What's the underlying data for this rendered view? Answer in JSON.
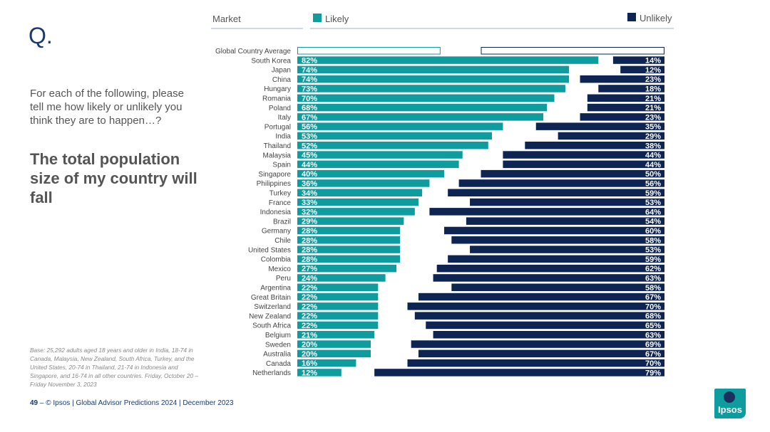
{
  "slide": {
    "q_mark": "Q.",
    "question": "For each of the following, please tell me how likely or unlikely you think they are to happen…?",
    "headline": "The total population size of my country will fall",
    "base_note": "Base: 25,292 adults aged 18 years and older in India, 18-74 in Canada, Malaysia, New Zealand, South Africa, Turkey, and the United States, 20-74 in Thailand, 21-74 in Indonesia and Singapore, and 16-74 in all other countries. Friday, October 20 – Friday November 3, 2023",
    "footer_page": "49",
    "footer_text": "–  © Ipsos | Global Advisor Predictions 2024 | December 2023",
    "logo_text": "Ipsos"
  },
  "colors": {
    "likely": "#0f9c9f",
    "unlikely": "#0e2453",
    "accent": "#1b3a6b"
  },
  "chart_data": {
    "type": "bar",
    "orientation": "horizontal",
    "legend": {
      "header": "Market",
      "likely": "Likely",
      "unlikely": "Unlikely"
    },
    "categories": [
      "Global Country Average",
      "South Korea",
      "Japan",
      "China",
      "Hungary",
      "Romania",
      "Poland",
      "Italy",
      "Portugal",
      "India",
      "Thailand",
      "Malaysia",
      "Spain",
      "Singapore",
      "Philippines",
      "Turkey",
      "France",
      "Indonesia",
      "Brazil",
      "Germany",
      "Chile",
      "United States",
      "Colombia",
      "Mexico",
      "Peru",
      "Argentina",
      "Great Britain",
      "Switzerland",
      "New Zealand",
      "South Africa",
      "Belgium",
      "Sweden",
      "Australia",
      "Canada",
      "Netherlands"
    ],
    "series": [
      {
        "name": "Likely",
        "values": [
          39,
          82,
          74,
          74,
          73,
          70,
          68,
          67,
          56,
          53,
          52,
          45,
          44,
          40,
          36,
          34,
          33,
          32,
          29,
          28,
          28,
          28,
          28,
          27,
          24,
          22,
          22,
          22,
          22,
          22,
          21,
          20,
          20,
          16,
          12
        ]
      },
      {
        "name": "Unlikely",
        "values": [
          50,
          14,
          12,
          23,
          18,
          21,
          21,
          23,
          35,
          29,
          38,
          44,
          44,
          50,
          56,
          59,
          53,
          64,
          54,
          60,
          58,
          53,
          59,
          62,
          63,
          58,
          67,
          70,
          68,
          65,
          63,
          69,
          67,
          70,
          79
        ]
      }
    ],
    "label_suffix": "%"
  }
}
